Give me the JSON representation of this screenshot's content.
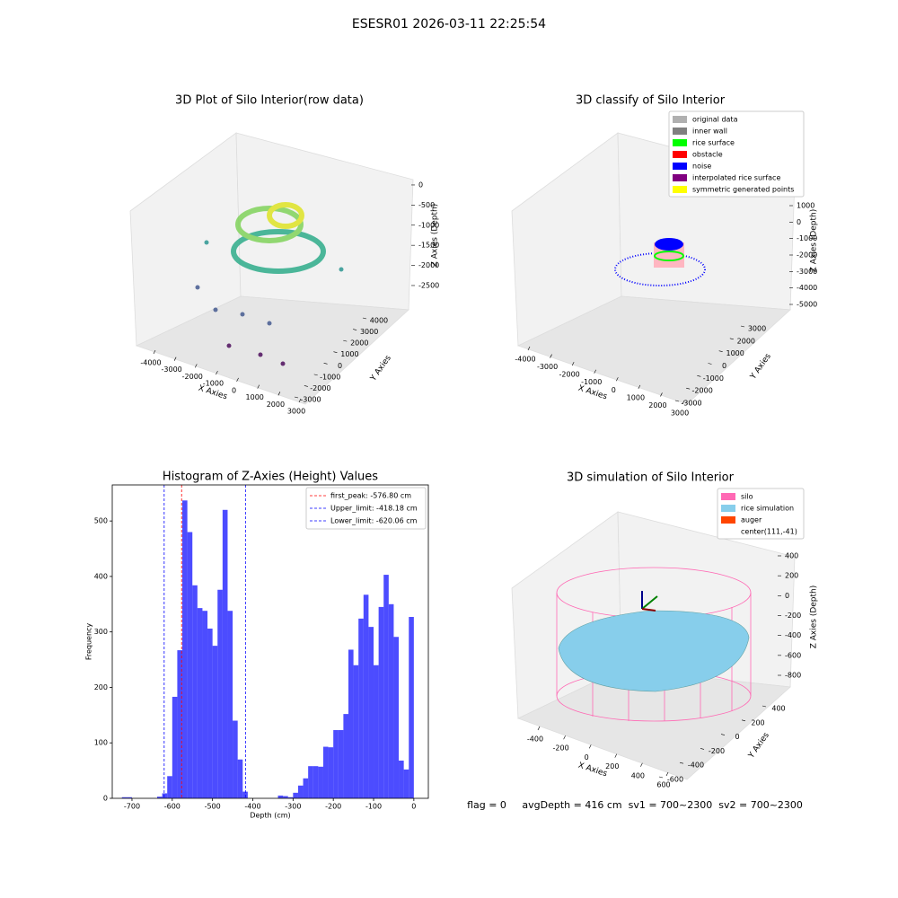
{
  "suptitle": "ESESR01 2026-03-11 22:25:54",
  "footer": "flag = 0     avgDepth = 416 cm  sv1 = 700~2300  sv2 = 700~2300",
  "chart_data": [
    {
      "type": "scatter3d",
      "title": "3D Plot of Silo Interior(row data)",
      "xlabel": "X Axies",
      "ylabel": "Y Axies",
      "zlabel": "Z Axies (Depth)",
      "xlim": [
        -4500,
        3500
      ],
      "xticks": [
        -4000,
        -3000,
        -2000,
        -1000,
        0,
        1000,
        2000,
        3000
      ],
      "ylim": [
        -3500,
        4500
      ],
      "yticks": [
        -3000,
        -2000,
        -1000,
        0,
        1000,
        2000,
        3000,
        4000
      ],
      "zlim": [
        -2800,
        200
      ],
      "zticks": [
        0,
        -500,
        -1000,
        -1500,
        -2000,
        -2500
      ]
    },
    {
      "type": "scatter3d",
      "title": "3D classify of Silo Interior",
      "xlabel": "X Axies",
      "ylabel": "Y Axies",
      "zlabel": "Z Axies (Depth)",
      "xlim": [
        -4500,
        3500
      ],
      "xticks": [
        -4000,
        -3000,
        -2000,
        -1000,
        0,
        1000,
        2000,
        3000
      ],
      "ylim": [
        -3500,
        3500
      ],
      "yticks": [
        -3000,
        -2000,
        -1000,
        0,
        1000,
        2000,
        3000
      ],
      "zlim": [
        -5300,
        1300
      ],
      "zticks": [
        1000,
        0,
        -1000,
        -2000,
        -3000,
        -4000,
        -5000
      ],
      "legend": [
        {
          "name": "original data",
          "color": "#b0b0b0"
        },
        {
          "name": "inner wall",
          "color": "#808080"
        },
        {
          "name": "rice surface",
          "color": "#00ff00"
        },
        {
          "name": "obstacle",
          "color": "#ff0000"
        },
        {
          "name": "noise",
          "color": "#0000ff"
        },
        {
          "name": "interpolated rice surface",
          "color": "#800080"
        },
        {
          "name": "symmetric generated points",
          "color": "#ffff00"
        }
      ],
      "legend_loc": "upper right"
    },
    {
      "type": "histogram",
      "title": "Histogram of Z-Axies (Height) Values",
      "xlabel": "Depth (cm)",
      "ylabel": "Frequency",
      "color": "#0000ff",
      "bins": [
        -725,
        -712.5,
        -700,
        -687.5,
        -675,
        -662.5,
        -650,
        -637.5,
        -625,
        -612.5,
        -600,
        -587.5,
        -575,
        -562.5,
        -550,
        -537.5,
        -525,
        -512.5,
        -500,
        -487.5,
        -475,
        -462.5,
        -450,
        -437.5,
        -425,
        -412.5,
        -400,
        -387.5,
        -375,
        -362.5,
        -350,
        -337.5,
        -325,
        -312.5,
        -300,
        -287.5,
        -275,
        -262.5,
        -250,
        -237.5,
        -225,
        -212.5,
        -200,
        -187.5,
        -175,
        -162.5,
        -150,
        -137.5,
        -125,
        -112.5,
        -100,
        -87.5,
        -75,
        -62.5,
        -50,
        -37.5,
        -25,
        -12.5,
        0
      ],
      "counts": [
        2,
        2,
        0,
        0,
        0,
        0,
        0,
        3,
        9,
        40,
        183,
        267,
        537,
        480,
        384,
        343,
        338,
        306,
        275,
        376,
        520,
        338,
        140,
        70,
        12,
        0,
        0,
        0,
        0,
        0,
        0,
        5,
        4,
        2,
        10,
        23,
        36,
        58,
        58,
        57,
        93,
        92,
        123,
        123,
        152,
        268,
        240,
        324,
        367,
        309,
        240,
        345,
        403,
        350,
        291,
        68,
        52,
        327
      ],
      "xlim": [
        -749,
        36
      ],
      "xticks": [
        -700,
        -600,
        -500,
        -400,
        -300,
        -200,
        -100,
        0
      ],
      "ylim": [
        0,
        565
      ],
      "yticks": [
        0,
        100,
        200,
        300,
        400,
        500
      ],
      "lines": [
        {
          "value": -576.8,
          "label": "first_peak: -576.80 cm",
          "color": "#ff0000"
        },
        {
          "value": -418.18,
          "label": "Upper_limit: -418.18 cm",
          "color": "#0000ff"
        },
        {
          "value": -620.06,
          "label": "Lower_limit: -620.06 cm",
          "color": "#0000ff"
        }
      ],
      "legend_loc": "upper right"
    },
    {
      "type": "surface3d",
      "title": "3D simulation of Silo Interior",
      "xlabel": "X Axies",
      "ylabel": "Y Axies",
      "zlabel": "Z Axies (Depth)",
      "xlim": [
        -500,
        700
      ],
      "xticks": [
        -400,
        -200,
        0,
        200,
        400,
        600
      ],
      "ylim": [
        -700,
        500
      ],
      "yticks": [
        -600,
        -400,
        -200,
        0,
        200,
        400
      ],
      "zlim": [
        -900,
        500
      ],
      "zticks": [
        400,
        200,
        0,
        -200,
        -400,
        -600,
        -800
      ],
      "legend": [
        {
          "name": "silo",
          "color": "#ff69b4"
        },
        {
          "name": "rice simulation",
          "color": "#87ceeb"
        },
        {
          "name": "auger",
          "color": "#ff4500"
        },
        {
          "name": "center(111,-41)",
          "color": "#ffffff"
        }
      ],
      "legend_loc": "upper right"
    }
  ]
}
